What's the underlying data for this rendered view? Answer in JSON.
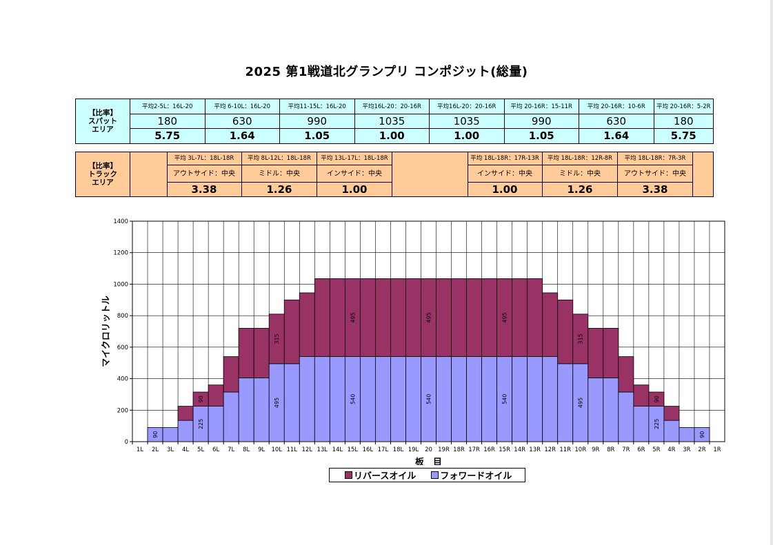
{
  "title": "2025  第1戦道北グランプリ コンポジット(総量)",
  "spot_table": {
    "label_lines": [
      "【比率】",
      "スパット",
      "エリア"
    ],
    "headers": [
      "平均2-5L：16L-20",
      "平均 6-10L：16L-20",
      "平均11-15L：16L-20",
      "平均16L-20：20-16R",
      "平均16L-20：20-16R",
      "平均 20-16R：15-11R",
      "平均 20-16R：10-6R",
      "平均 20-16R：5-2R"
    ],
    "quantities": [
      "180",
      "630",
      "990",
      "1035",
      "1035",
      "990",
      "630",
      "180"
    ],
    "ratios": [
      "5.75",
      "1.64",
      "1.05",
      "1.00",
      "1.00",
      "1.05",
      "1.64",
      "5.75"
    ]
  },
  "track_table": {
    "label_lines": [
      "【比率】",
      "トラック",
      "エリア"
    ],
    "left_headers": [
      "平均 3L-7L：18L-18R",
      "平均 8L-12L：18L-18R",
      "平均 13L-17L：18L-18R"
    ],
    "left_subs": [
      "アウトサイド：中央",
      "ミドル：中央",
      "インサイド：中央"
    ],
    "left_ratios": [
      "3.38",
      "1.26",
      "1.00"
    ],
    "right_headers": [
      "平均 18L-18R：17R-13R",
      "平均 18L-18R：12R-8R",
      "平均 18L-18R：7R-3R"
    ],
    "right_subs": [
      "インサイド：中央",
      "ミドル：中央",
      "アウトサイド：中央"
    ],
    "right_ratios": [
      "1.00",
      "1.26",
      "3.38"
    ]
  },
  "colors": {
    "reverse": "#993366",
    "forward": "#9999ff",
    "spot_bg": "#ccffff",
    "track_bg": "#ffcc99"
  },
  "chart_data": {
    "type": "bar",
    "stacked": true,
    "xlabel": "板　目",
    "ylabel": "マイクロリットル",
    "ylim": [
      0,
      1400
    ],
    "yticks": [
      0,
      200,
      400,
      600,
      800,
      1000,
      1200,
      1400
    ],
    "grid": true,
    "legend_position": "bottom",
    "categories": [
      "1L",
      "2L",
      "3L",
      "4L",
      "5L",
      "6L",
      "7L",
      "8L",
      "9L",
      "10L",
      "11L",
      "12L",
      "13L",
      "14L",
      "15L",
      "16L",
      "17L",
      "18L",
      "19L",
      "20",
      "19R",
      "18R",
      "17R",
      "16R",
      "15R",
      "14R",
      "13R",
      "12R",
      "11R",
      "10R",
      "9R",
      "8R",
      "7R",
      "6R",
      "5R",
      "4R",
      "3R",
      "2R",
      "1R"
    ],
    "series": [
      {
        "name": "フォワードオイル",
        "values": [
          0,
          90,
          90,
          135,
          225,
          225,
          315,
          405,
          405,
          495,
          495,
          540,
          540,
          540,
          540,
          540,
          540,
          540,
          540,
          540,
          540,
          540,
          540,
          540,
          540,
          540,
          540,
          540,
          495,
          495,
          405,
          405,
          315,
          225,
          225,
          135,
          90,
          90,
          0
        ]
      },
      {
        "name": "リバースオイル",
        "values": [
          0,
          0,
          0,
          90,
          90,
          135,
          225,
          315,
          315,
          315,
          405,
          405,
          495,
          495,
          495,
          495,
          495,
          495,
          495,
          495,
          495,
          495,
          495,
          495,
          495,
          495,
          495,
          405,
          405,
          315,
          315,
          315,
          225,
          135,
          90,
          90,
          0,
          0,
          0
        ]
      }
    ],
    "data_labels": [
      {
        "index": 1,
        "series": 0,
        "text": "90"
      },
      {
        "index": 4,
        "series": 0,
        "text": "225"
      },
      {
        "index": 4,
        "series": 1,
        "text": "90"
      },
      {
        "index": 9,
        "series": 0,
        "text": "495"
      },
      {
        "index": 9,
        "series": 1,
        "text": "315"
      },
      {
        "index": 14,
        "series": 0,
        "text": "540"
      },
      {
        "index": 14,
        "series": 1,
        "text": "495"
      },
      {
        "index": 19,
        "series": 0,
        "text": "540"
      },
      {
        "index": 19,
        "series": 1,
        "text": "495"
      },
      {
        "index": 24,
        "series": 0,
        "text": "540"
      },
      {
        "index": 24,
        "series": 1,
        "text": "495"
      },
      {
        "index": 29,
        "series": 0,
        "text": "495"
      },
      {
        "index": 29,
        "series": 1,
        "text": "315"
      },
      {
        "index": 34,
        "series": 0,
        "text": "225"
      },
      {
        "index": 34,
        "series": 1,
        "text": "90"
      },
      {
        "index": 37,
        "series": 0,
        "text": "90"
      }
    ]
  }
}
